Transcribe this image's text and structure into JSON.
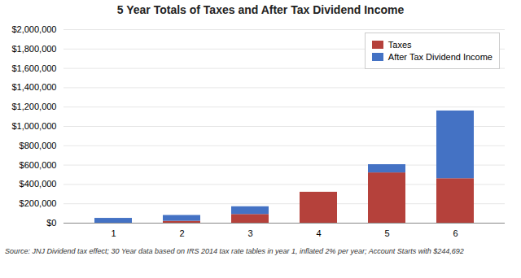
{
  "chart_data": {
    "type": "bar",
    "stacked": true,
    "title": "5 Year Totals of Taxes and After Tax Dividend Income",
    "categories": [
      "1",
      "2",
      "3",
      "4",
      "5",
      "6"
    ],
    "series": [
      {
        "name": "Taxes",
        "color": "#b5413b",
        "values": [
          0,
          20000,
          90000,
          320000,
          520000,
          460000
        ]
      },
      {
        "name": "After Tax Dividend Income",
        "color": "#4472c4",
        "values": [
          50000,
          60000,
          80000,
          0,
          85000,
          700000
        ]
      }
    ],
    "ylim": [
      0,
      2000000
    ],
    "yticks": [
      {
        "value": 0,
        "label": "$0"
      },
      {
        "value": 200000,
        "label": "$200,000"
      },
      {
        "value": 400000,
        "label": "$400,000"
      },
      {
        "value": 600000,
        "label": "$600,000"
      },
      {
        "value": 800000,
        "label": "$800,000"
      },
      {
        "value": 1000000,
        "label": "$1,000,000"
      },
      {
        "value": 1200000,
        "label": "$1,200,000"
      },
      {
        "value": 1400000,
        "label": "$1,400,000"
      },
      {
        "value": 1600000,
        "label": "$1,600,000"
      },
      {
        "value": 1800000,
        "label": "$1,800,000"
      },
      {
        "value": 2000000,
        "label": "$2,000,000"
      }
    ],
    "grid": true,
    "legend": "upper right",
    "caption": "Source: JNJ Dividend tax effect; 30 Year data based on IRS 2014 tax rate tables in year 1, inflated 2% per year; Account Starts with $244,692"
  }
}
